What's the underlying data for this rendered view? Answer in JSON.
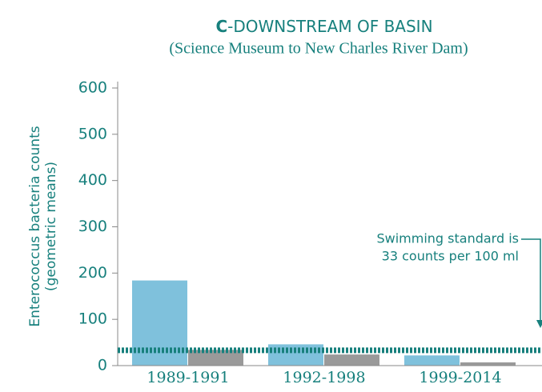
{
  "chart_data": {
    "type": "bar",
    "title_prefix": "C",
    "title": "-DOWNSTREAM OF BASIN",
    "subtitle": "(Science Museum to New Charles River Dam)",
    "ylabel": [
      "Enterococcus bacteria counts",
      "(geometric means)"
    ],
    "categories": [
      "1989-1991",
      "1992-1998",
      "1999-2014"
    ],
    "series": [
      {
        "color": "#7fc1dc",
        "values": [
          184,
          46,
          22
        ]
      },
      {
        "color": "#9a9a9a",
        "values": [
          34,
          24,
          7
        ]
      }
    ],
    "ylim": [
      0,
      600
    ],
    "yticks": [
      0,
      100,
      200,
      300,
      400,
      500,
      600
    ],
    "standard": 33,
    "annotation": [
      "Swimming standard is",
      "33 counts per 100 ml"
    ]
  }
}
